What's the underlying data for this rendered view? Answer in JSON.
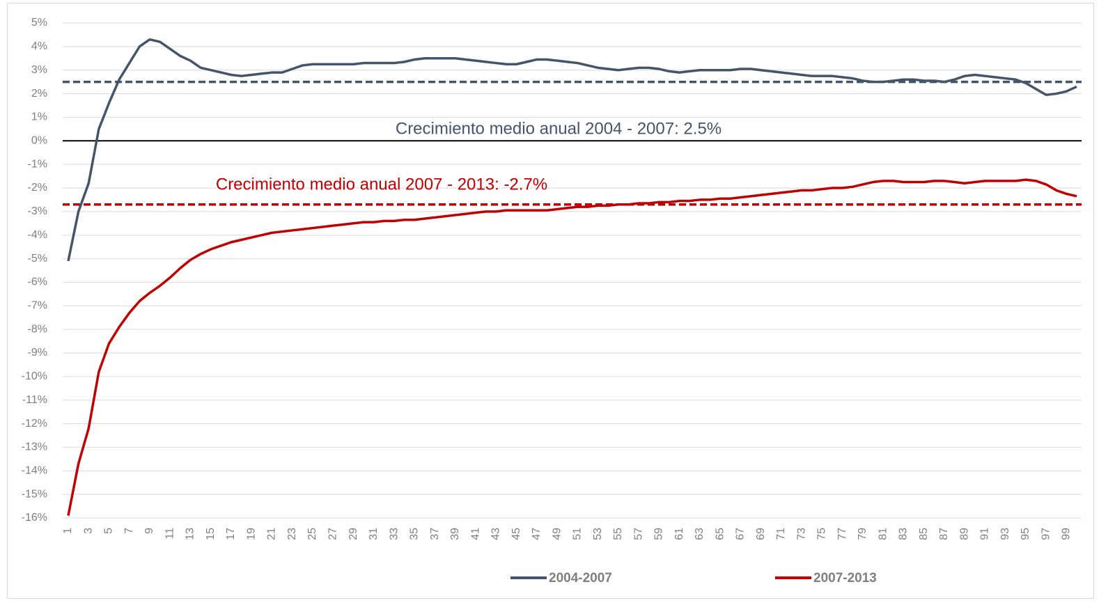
{
  "chart_data": {
    "type": "line",
    "annotations": [
      {
        "text": "Crecimiento medio anual 2004 - 2007: 2.5%",
        "color": "#44546a"
      },
      {
        "text": "Crecimiento medio anual 2007 - 2013: -2.7%",
        "color": "#c00000"
      }
    ],
    "reference_lines": [
      {
        "value": 2.5,
        "color": "#44546a"
      },
      {
        "value": -2.7,
        "color": "#c00000"
      }
    ],
    "categories": [
      "1",
      null,
      "3",
      null,
      "5",
      null,
      "7",
      null,
      "9",
      null,
      "11",
      null,
      "13",
      null,
      "15",
      null,
      "17",
      null,
      "19",
      null,
      "21",
      null,
      "23",
      null,
      "25",
      null,
      "27",
      null,
      "29",
      null,
      "31",
      null,
      "33",
      null,
      "35",
      null,
      "37",
      null,
      "39",
      null,
      "41",
      null,
      "43",
      null,
      "45",
      null,
      "47",
      null,
      "49",
      null,
      "51",
      null,
      "53",
      null,
      "55",
      null,
      "57",
      null,
      "59",
      null,
      "61",
      null,
      "63",
      null,
      "65",
      null,
      "67",
      null,
      "69",
      null,
      "71",
      null,
      "73",
      null,
      "75",
      null,
      "77",
      null,
      "79",
      null,
      "81",
      null,
      "83",
      null,
      "85",
      null,
      "87",
      null,
      "89",
      null,
      "91",
      null,
      "93",
      null,
      "95",
      null,
      "97",
      null,
      "99",
      null
    ],
    "series": [
      {
        "name": "2004-2007",
        "color": "#44546a",
        "values": [
          -5.1,
          -3.0,
          -1.8,
          0.5,
          1.6,
          2.6,
          3.3,
          4.0,
          4.3,
          4.2,
          3.9,
          3.6,
          3.4,
          3.1,
          3.0,
          2.9,
          2.8,
          2.75,
          2.8,
          2.85,
          2.9,
          2.9,
          3.05,
          3.2,
          3.25,
          3.25,
          3.25,
          3.25,
          3.25,
          3.3,
          3.3,
          3.3,
          3.3,
          3.35,
          3.45,
          3.5,
          3.5,
          3.5,
          3.5,
          3.45,
          3.4,
          3.35,
          3.3,
          3.25,
          3.25,
          3.35,
          3.45,
          3.45,
          3.4,
          3.35,
          3.3,
          3.2,
          3.1,
          3.05,
          3.0,
          3.05,
          3.1,
          3.1,
          3.05,
          2.95,
          2.9,
          2.95,
          3.0,
          3.0,
          3.0,
          3.0,
          3.05,
          3.05,
          3.0,
          2.95,
          2.9,
          2.85,
          2.8,
          2.75,
          2.75,
          2.75,
          2.7,
          2.65,
          2.55,
          2.5,
          2.5,
          2.55,
          2.6,
          2.6,
          2.55,
          2.55,
          2.5,
          2.6,
          2.75,
          2.8,
          2.75,
          2.7,
          2.65,
          2.6,
          2.45,
          2.2,
          1.95,
          2.0,
          2.1,
          2.3
        ]
      },
      {
        "name": "2007-2013",
        "color": "#c00000",
        "values": [
          -15.9,
          -13.7,
          -12.2,
          -9.8,
          -8.6,
          -7.9,
          -7.3,
          -6.8,
          -6.45,
          -6.15,
          -5.8,
          -5.4,
          -5.05,
          -4.8,
          -4.6,
          -4.45,
          -4.3,
          -4.2,
          -4.1,
          -4.0,
          -3.9,
          -3.85,
          -3.8,
          -3.75,
          -3.7,
          -3.65,
          -3.6,
          -3.55,
          -3.5,
          -3.45,
          -3.45,
          -3.4,
          -3.4,
          -3.35,
          -3.35,
          -3.3,
          -3.25,
          -3.2,
          -3.15,
          -3.1,
          -3.05,
          -3.0,
          -3.0,
          -2.95,
          -2.95,
          -2.95,
          -2.95,
          -2.95,
          -2.9,
          -2.85,
          -2.8,
          -2.8,
          -2.75,
          -2.75,
          -2.7,
          -2.7,
          -2.65,
          -2.65,
          -2.6,
          -2.6,
          -2.55,
          -2.55,
          -2.5,
          -2.5,
          -2.45,
          -2.45,
          -2.4,
          -2.35,
          -2.3,
          -2.25,
          -2.2,
          -2.15,
          -2.1,
          -2.1,
          -2.05,
          -2.0,
          -2.0,
          -1.95,
          -1.85,
          -1.75,
          -1.7,
          -1.7,
          -1.75,
          -1.75,
          -1.75,
          -1.7,
          -1.7,
          -1.75,
          -1.8,
          -1.75,
          -1.7,
          -1.7,
          -1.7,
          -1.7,
          -1.65,
          -1.7,
          -1.85,
          -2.1,
          -2.25,
          -2.35
        ]
      }
    ],
    "ylim": [
      -16,
      5
    ],
    "yticks": [
      {
        "value": -16,
        "label": "-16%"
      },
      {
        "value": -15,
        "label": "-15%"
      },
      {
        "value": -14,
        "label": "-14%"
      },
      {
        "value": -13,
        "label": "-13%"
      },
      {
        "value": -12,
        "label": "-12%"
      },
      {
        "value": -11,
        "label": "-11%"
      },
      {
        "value": -10,
        "label": "-10%"
      },
      {
        "value": -9,
        "label": "-9%"
      },
      {
        "value": -8,
        "label": "-8%"
      },
      {
        "value": -7,
        "label": "-7%"
      },
      {
        "value": -6,
        "label": "-6%"
      },
      {
        "value": -5,
        "label": "-5%"
      },
      {
        "value": -4,
        "label": "-4%"
      },
      {
        "value": -3,
        "label": "-3%"
      },
      {
        "value": -2,
        "label": "-2%"
      },
      {
        "value": -1,
        "label": "-1%"
      },
      {
        "value": 0,
        "label": "0%"
      },
      {
        "value": 1,
        "label": "1%"
      },
      {
        "value": 2,
        "label": "2%"
      },
      {
        "value": 3,
        "label": "3%"
      },
      {
        "value": 4,
        "label": "4%"
      },
      {
        "value": 5,
        "label": "5%"
      }
    ],
    "grid": true,
    "legend": "bottom"
  }
}
